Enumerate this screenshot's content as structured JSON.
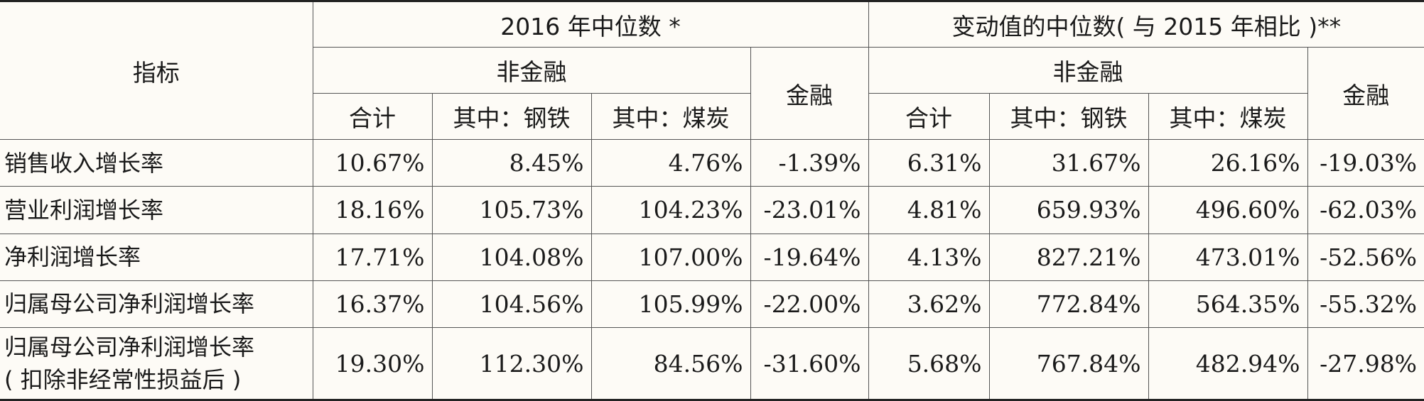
{
  "header": {
    "indicator": "指标",
    "group_2016": "2016 年中位数 *",
    "group_change": "变动值的中位数( 与 2015 年相比 )**",
    "nonfinancial": "非金融",
    "financial": "金融",
    "total": "合计",
    "steel": "其中：钢铁",
    "coal": "其中：煤炭"
  },
  "rows": [
    {
      "label": "销售收入增长率",
      "label2": "",
      "values": [
        "10.67%",
        "8.45%",
        "4.76%",
        "-1.39%",
        "6.31%",
        "31.67%",
        "26.16%",
        "-19.03%"
      ]
    },
    {
      "label": "营业利润增长率",
      "label2": "",
      "values": [
        "18.16%",
        "105.73%",
        "104.23%",
        "-23.01%",
        "4.81%",
        "659.93%",
        "496.60%",
        "-62.03%"
      ]
    },
    {
      "label": "净利润增长率",
      "label2": "",
      "values": [
        "17.71%",
        "104.08%",
        "107.00%",
        "-19.64%",
        "4.13%",
        "827.21%",
        "473.01%",
        "-52.56%"
      ]
    },
    {
      "label": "归属母公司净利润增长率",
      "label2": "",
      "values": [
        "16.37%",
        "104.56%",
        "105.99%",
        "-22.00%",
        "3.62%",
        "772.84%",
        "564.35%",
        "-55.32%"
      ]
    },
    {
      "label": "归属母公司净利润增长率",
      "label2": "( 扣除非经常性损益后 )",
      "values": [
        "19.30%",
        "112.30%",
        "84.56%",
        "-31.60%",
        "5.68%",
        "767.84%",
        "482.94%",
        "-27.98%"
      ]
    }
  ]
}
